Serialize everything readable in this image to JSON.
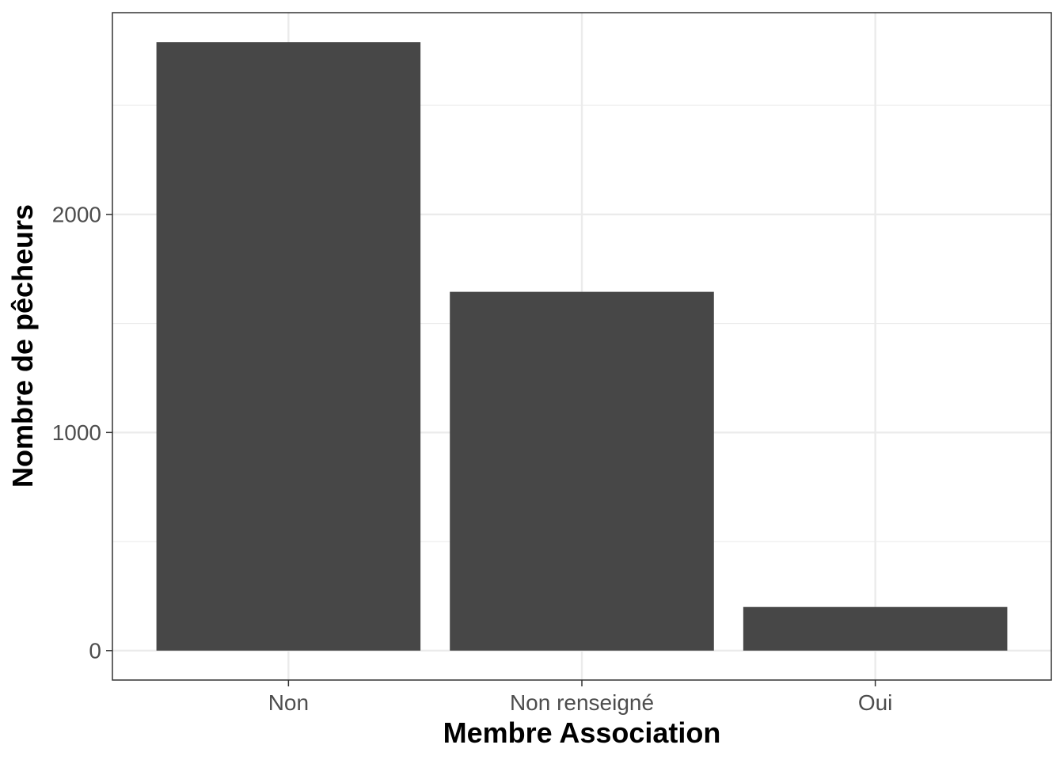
{
  "chart_data": {
    "type": "bar",
    "categories": [
      "Non",
      "Non renseigné",
      "Oui"
    ],
    "values": [
      2790,
      1645,
      200
    ],
    "title": "",
    "xlabel": "Membre Association",
    "ylabel": "Nombre de pêcheurs",
    "ylim": [
      -135,
      2925
    ],
    "yticks": [
      0,
      1000,
      2000
    ],
    "ytick_labels": [
      "0",
      "1000",
      "2000"
    ],
    "minor_yticks": [
      500,
      1500,
      2500
    ],
    "grid": true,
    "legend": "none",
    "colors": {
      "bar": "#474747",
      "grid_major": "#ebebeb",
      "grid_minor": "#ebebeb",
      "panel_border": "#333333",
      "tick": "#333333",
      "tick_label": "#4d4d4d",
      "background": "#ffffff"
    }
  }
}
